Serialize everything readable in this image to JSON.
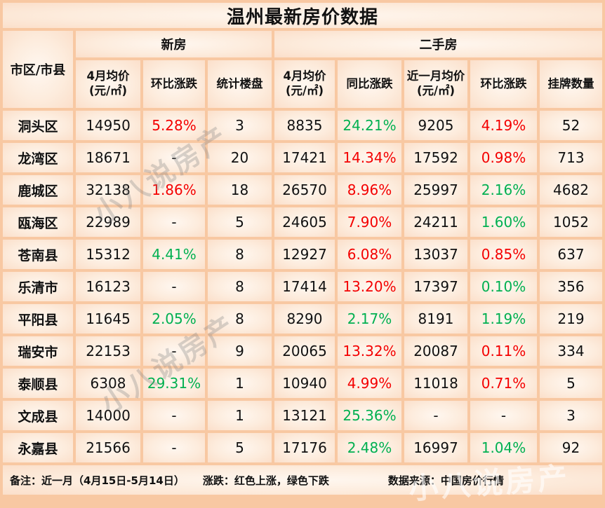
{
  "title": "温州最新房价数据",
  "colors": {
    "up_red": "#f40000",
    "down_green": "#00b050",
    "grid": "#f8c8a2"
  },
  "header": {
    "corner": "市区/市县",
    "group_new": "新房",
    "group_used": "二手房",
    "new_cols": [
      "4月均价 (元/㎡)",
      "环比涨跌",
      "统计楼盘"
    ],
    "used_cols": [
      "4月均价 (元/㎡)",
      "同比涨跌",
      "近一月均价(元/㎡)",
      "环比涨跌",
      "挂牌数量"
    ]
  },
  "rows": [
    {
      "district": "洞头区",
      "cells": [
        [
          "14950",
          "k"
        ],
        [
          "5.28%",
          "r"
        ],
        [
          "3",
          "k"
        ],
        [
          "8835",
          "k"
        ],
        [
          "24.21%",
          "g"
        ],
        [
          "9205",
          "k"
        ],
        [
          "4.19%",
          "r"
        ],
        [
          "52",
          "k"
        ]
      ]
    },
    {
      "district": "龙湾区",
      "cells": [
        [
          "18671",
          "k"
        ],
        [
          "-",
          "k"
        ],
        [
          "20",
          "k"
        ],
        [
          "17421",
          "k"
        ],
        [
          "14.34%",
          "r"
        ],
        [
          "17592",
          "k"
        ],
        [
          "0.98%",
          "r"
        ],
        [
          "713",
          "k"
        ]
      ]
    },
    {
      "district": "鹿城区",
      "cells": [
        [
          "32138",
          "k"
        ],
        [
          "1.86%",
          "r"
        ],
        [
          "18",
          "k"
        ],
        [
          "26570",
          "k"
        ],
        [
          "8.96%",
          "r"
        ],
        [
          "25997",
          "k"
        ],
        [
          "2.16%",
          "g"
        ],
        [
          "4682",
          "k"
        ]
      ]
    },
    {
      "district": "瓯海区",
      "cells": [
        [
          "22989",
          "k"
        ],
        [
          "-",
          "k"
        ],
        [
          "5",
          "k"
        ],
        [
          "24605",
          "k"
        ],
        [
          "7.90%",
          "r"
        ],
        [
          "24211",
          "k"
        ],
        [
          "1.60%",
          "g"
        ],
        [
          "1052",
          "k"
        ]
      ]
    },
    {
      "district": "苍南县",
      "cells": [
        [
          "15312",
          "k"
        ],
        [
          "4.41%",
          "g"
        ],
        [
          "8",
          "k"
        ],
        [
          "12927",
          "k"
        ],
        [
          "6.08%",
          "r"
        ],
        [
          "13037",
          "k"
        ],
        [
          "0.85%",
          "r"
        ],
        [
          "637",
          "k"
        ]
      ]
    },
    {
      "district": "乐清市",
      "cells": [
        [
          "16123",
          "k"
        ],
        [
          "-",
          "k"
        ],
        [
          "8",
          "k"
        ],
        [
          "17414",
          "k"
        ],
        [
          "13.20%",
          "r"
        ],
        [
          "17397",
          "k"
        ],
        [
          "0.10%",
          "g"
        ],
        [
          "356",
          "k"
        ]
      ]
    },
    {
      "district": "平阳县",
      "cells": [
        [
          "11645",
          "k"
        ],
        [
          "2.05%",
          "g"
        ],
        [
          "8",
          "k"
        ],
        [
          "8290",
          "k"
        ],
        [
          "2.17%",
          "g"
        ],
        [
          "8191",
          "k"
        ],
        [
          "1.19%",
          "g"
        ],
        [
          "219",
          "k"
        ]
      ]
    },
    {
      "district": "瑞安市",
      "cells": [
        [
          "22153",
          "k"
        ],
        [
          "-",
          "k"
        ],
        [
          "9",
          "k"
        ],
        [
          "20065",
          "k"
        ],
        [
          "13.32%",
          "r"
        ],
        [
          "20087",
          "k"
        ],
        [
          "0.11%",
          "r"
        ],
        [
          "334",
          "k"
        ]
      ]
    },
    {
      "district": "泰顺县",
      "cells": [
        [
          "6308",
          "k"
        ],
        [
          "29.31%",
          "g"
        ],
        [
          "1",
          "k"
        ],
        [
          "10940",
          "k"
        ],
        [
          "4.99%",
          "r"
        ],
        [
          "11018",
          "k"
        ],
        [
          "0.71%",
          "r"
        ],
        [
          "5",
          "k"
        ]
      ]
    },
    {
      "district": "文成县",
      "cells": [
        [
          "14000",
          "k"
        ],
        [
          "-",
          "k"
        ],
        [
          "1",
          "k"
        ],
        [
          "13121",
          "k"
        ],
        [
          "25.36%",
          "g"
        ],
        [
          "-",
          "k"
        ],
        [
          "-",
          "k"
        ],
        [
          "3",
          "k"
        ]
      ]
    },
    {
      "district": "永嘉县",
      "cells": [
        [
          "21566",
          "k"
        ],
        [
          "-",
          "k"
        ],
        [
          "5",
          "k"
        ],
        [
          "17176",
          "k"
        ],
        [
          "2.48%",
          "g"
        ],
        [
          "16997",
          "k"
        ],
        [
          "1.04%",
          "g"
        ],
        [
          "92",
          "k"
        ]
      ]
    }
  ],
  "footer": {
    "note": "备注：近一月（4月15日-5月14日）",
    "legend": "涨跌：红色上涨，绿色下跌",
    "source": "数据来源：中国房价行情"
  },
  "watermark": {
    "text": "小八说房产"
  }
}
